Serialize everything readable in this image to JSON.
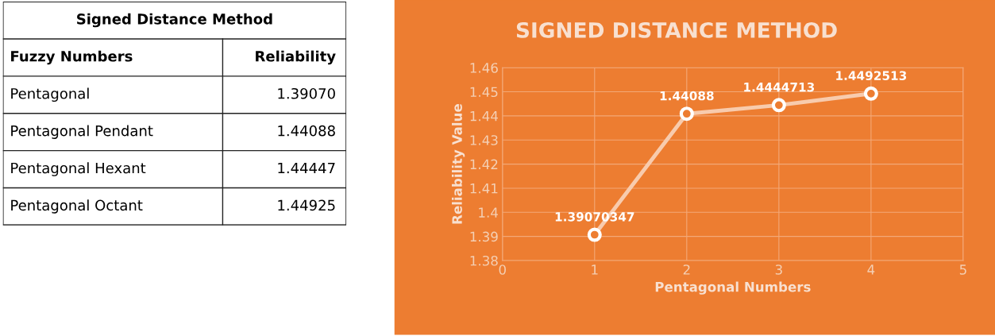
{
  "chart_data": [
    {
      "type": "other",
      "title": "Signed Distance Method",
      "annotations": [
        "Fuzzy Numbers",
        "Reliability",
        "Pentagonal",
        "1.39070",
        "Pentagonal Pendant",
        "1.44088",
        "Pentagonal Hexant",
        "1.44447",
        "Pentagonal Octant",
        "1.44925"
      ]
    },
    {
      "type": "line",
      "title": "SIGNED DISTANCE METHOD",
      "xlabel": "Pentagonal Numbers",
      "ylabel": "Reliability Value",
      "x": [
        1,
        2,
        3,
        4
      ],
      "series": [
        {
          "color": "#f8cbad",
          "values": [
            1.39070347,
            1.44088,
            1.4444713,
            1.4492513
          ],
          "value_labels": [
            "1.39070347",
            "1.44088",
            "1.4444713",
            "1.4492513"
          ]
        }
      ],
      "xlim": [
        0,
        5
      ],
      "xticks": [
        0,
        1,
        2,
        3,
        4,
        5
      ],
      "ylim": [
        1.38,
        1.46
      ],
      "yticks": [
        1.38,
        1.39,
        1.4,
        1.41,
        1.42,
        1.43,
        1.44,
        1.45,
        1.46
      ],
      "grid": true,
      "marker": "circle",
      "line_style": "solid"
    }
  ]
}
